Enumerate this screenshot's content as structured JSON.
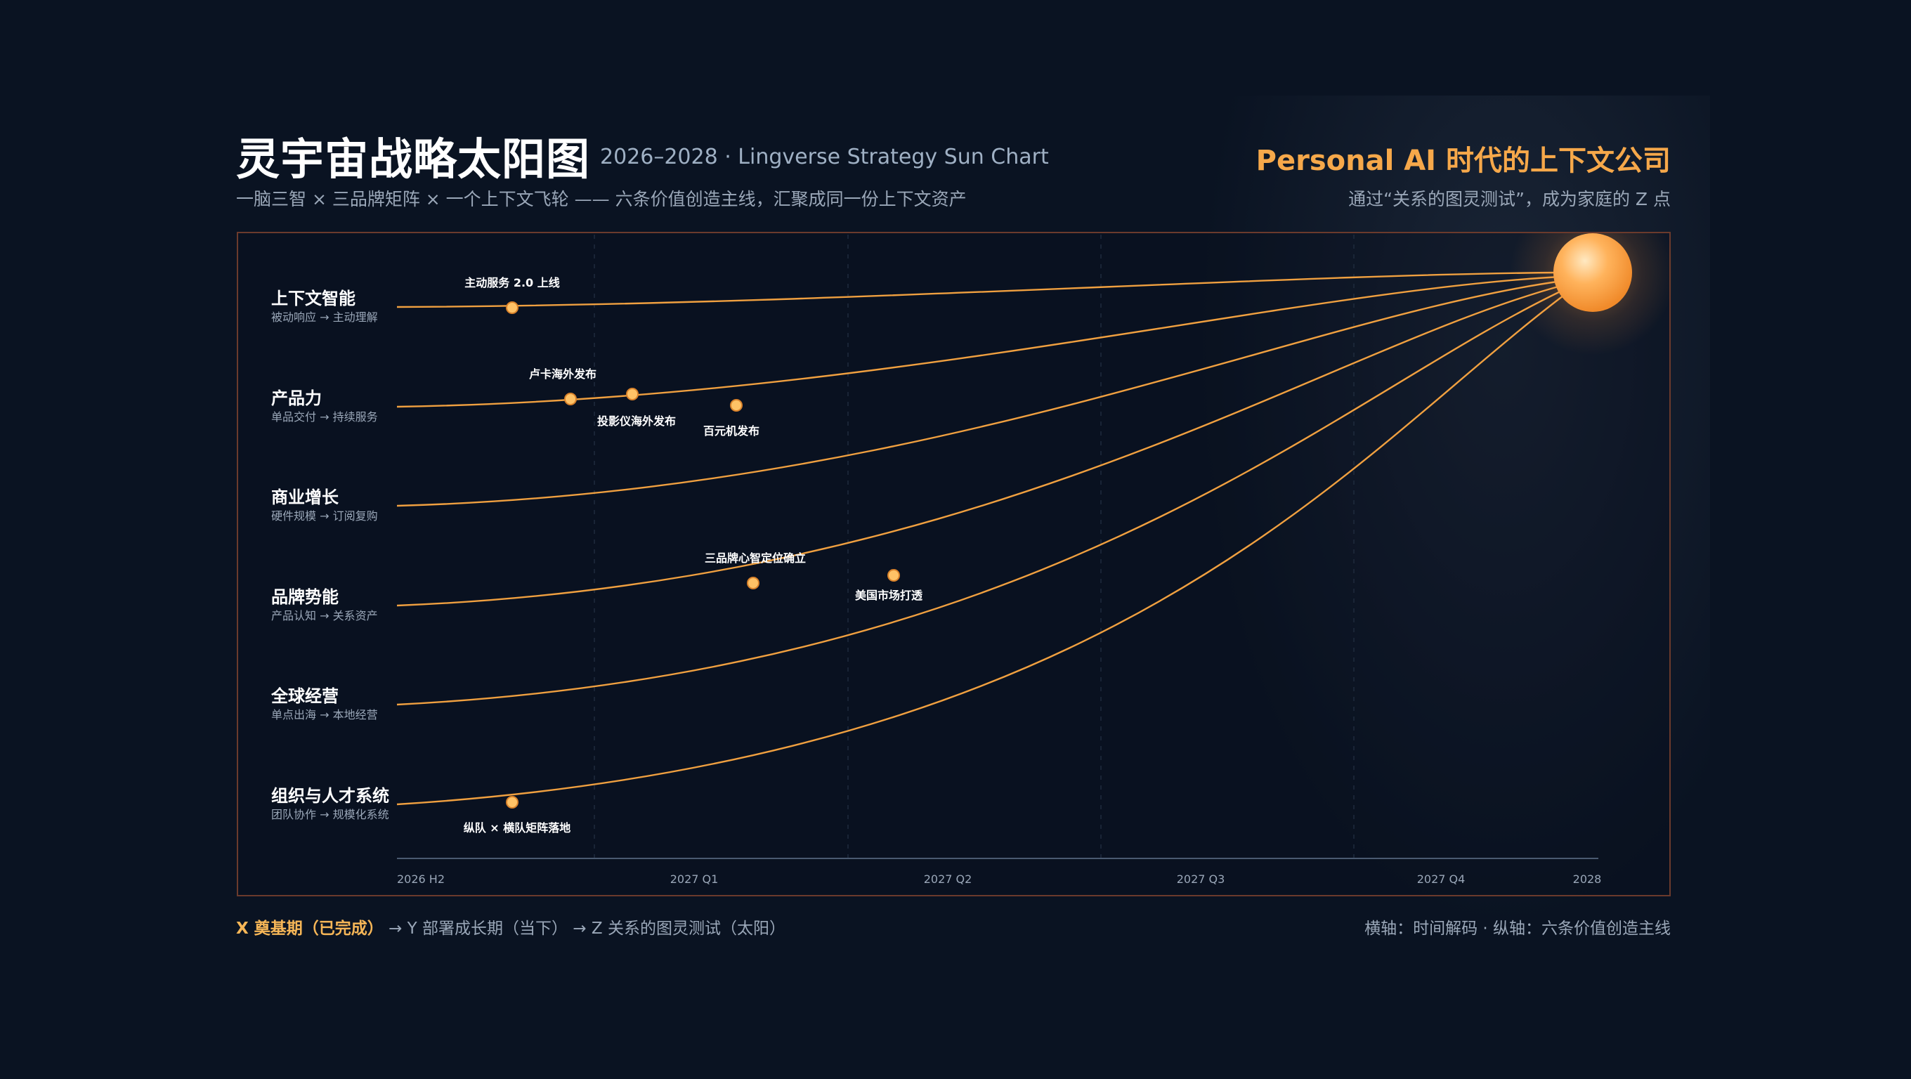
{
  "header": {
    "title": "灵宇宙战略太阳图",
    "title_sub": "2026–2028 · Lingverse Strategy Sun Chart",
    "subtitle": "一脑三智 × 三品牌矩阵 × 一个上下文飞轮 —— 六条价值创造主线，汇聚成同一份上下文资产",
    "right_title": "Personal AI 时代的上下文公司",
    "right_sub": "通过“关系的图灵测试”，成为家庭的 Z 点"
  },
  "diagram": {
    "x_axis_ticks": [
      "2026 H2",
      "2027 Q1",
      "2027 Q2",
      "2027 Q3",
      "2027 Q4",
      "2028"
    ],
    "lanes": [
      {
        "name": "上下文智能",
        "sub": "被动响应 → 主动理解"
      },
      {
        "name": "产品力",
        "sub": "单品交付 → 持续服务"
      },
      {
        "name": "商业增长",
        "sub": "硬件规模 → 订阅复购"
      },
      {
        "name": "品牌势能",
        "sub": "产品认知 → 关系资产"
      },
      {
        "name": "全球经营",
        "sub": "单点出海 → 本地经营"
      },
      {
        "name": "组织与人才系统",
        "sub": "团队协作 → 规模化系统"
      }
    ],
    "milestones": [
      {
        "label": "主动服务 2.0 上线",
        "lane": "上下文智能",
        "label_pos": "above"
      },
      {
        "label": "卢卡海外发布",
        "lane": "产品力",
        "label_pos": "above"
      },
      {
        "label": "投影仪海外发布",
        "lane": "产品力",
        "label_pos": "below"
      },
      {
        "label": "百元机发布",
        "lane": "产品力",
        "label_pos": "below"
      },
      {
        "label": "三品牌心智定位确立",
        "lane": "品牌势能",
        "label_pos": "above"
      },
      {
        "label": "美国市场打透",
        "lane": "品牌势能",
        "label_pos": "below"
      },
      {
        "label": "纵队 × 横队矩阵落地",
        "lane": "组织与人才系统",
        "label_pos": "below"
      }
    ],
    "sun": "sun-icon",
    "colors": {
      "line": "#f0a040",
      "sun": "#ffb35c",
      "dot": "#ffc266",
      "frame": "#6b3a2c"
    }
  },
  "footer": {
    "phase_x": "X 奠基期（已完成）",
    "phase_rest": "→ Y 部署成长期（当下） → Z 关系的图灵测试（太阳）",
    "axes_note": "横轴：时间解码 · 纵轴：六条价值创造主线"
  }
}
